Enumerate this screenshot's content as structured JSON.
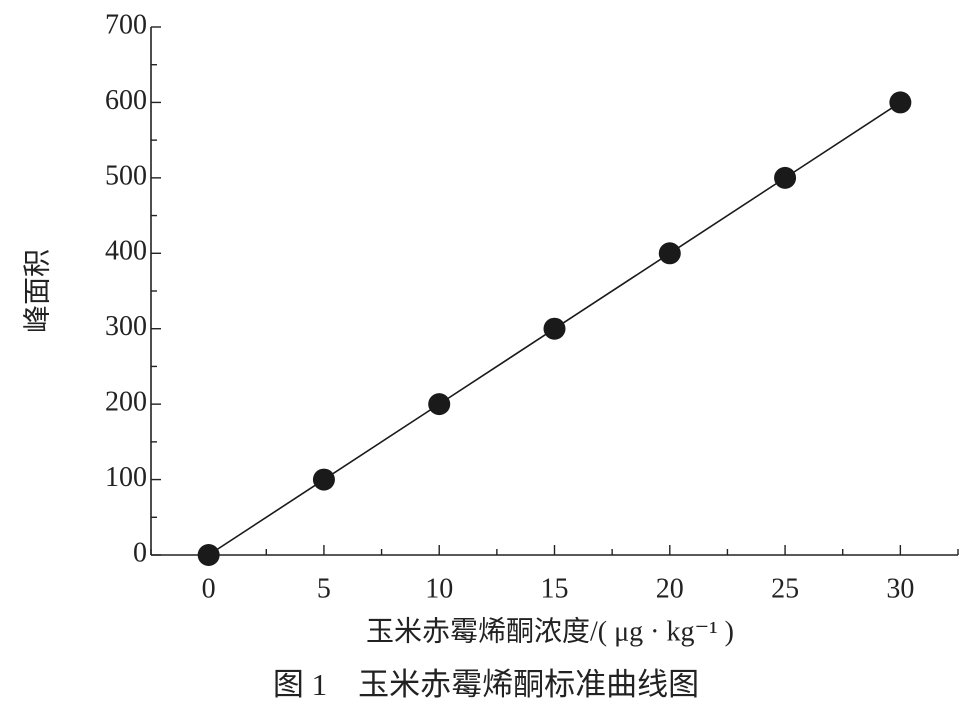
{
  "chart_data": {
    "type": "scatter",
    "caption": "图 1　玉米赤霉烯酮标准曲线图",
    "xlabel": "玉米赤霉烯酮浓度/( μg · kg⁻¹ )",
    "ylabel": "峰面积",
    "x": [
      0,
      5,
      10,
      15,
      20,
      25,
      30
    ],
    "values": [
      0,
      100,
      200,
      300,
      400,
      500,
      600
    ],
    "color": "#1a1a1a",
    "line": true,
    "xlim": [
      -2.5,
      32.5
    ],
    "xticks": [
      0,
      5,
      10,
      15,
      20,
      25,
      30
    ],
    "xminorticks": [
      -2.5,
      2.5,
      7.5,
      12.5,
      17.5,
      22.5,
      27.5,
      32.5
    ],
    "ylim": [
      0,
      700
    ],
    "yticks": [
      0,
      100,
      200,
      300,
      400,
      500,
      600,
      700
    ],
    "yminorticks": [
      50,
      150,
      250,
      350,
      450,
      550,
      650
    ]
  }
}
